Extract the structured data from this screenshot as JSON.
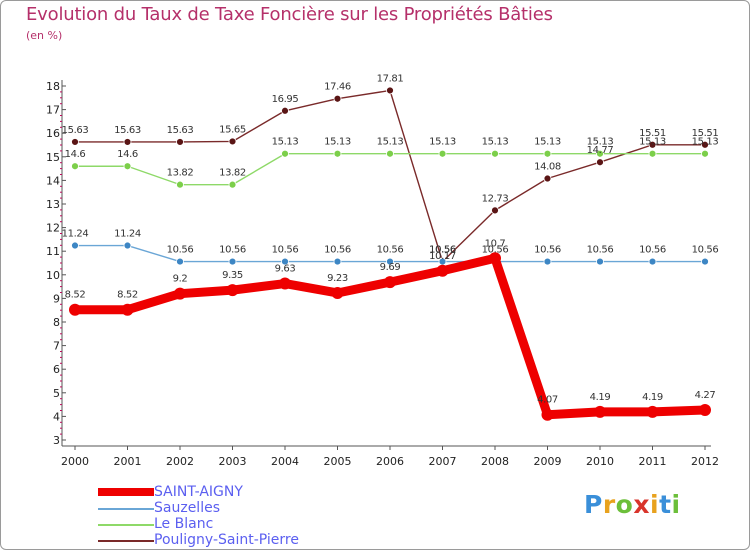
{
  "chart_data": {
    "type": "line",
    "title": "Evolution du Taux de Taxe Foncière sur les Propriétés Bâties",
    "subtitle": "(en %)",
    "xlabel": "",
    "ylabel": "(en %)",
    "ylim": [
      3,
      18
    ],
    "yticks": [
      "3",
      "4",
      "5",
      "6",
      "7",
      "8",
      "9",
      "10",
      "11",
      "12",
      "13",
      "14",
      "15",
      "16",
      "17",
      "18"
    ],
    "categories": [
      "2000",
      "2001",
      "2002",
      "2003",
      "2004",
      "2005",
      "2006",
      "2007",
      "2008",
      "2009",
      "2010",
      "2011",
      "2012"
    ],
    "grid": false,
    "legend_position": "bottom-left",
    "series": [
      {
        "name": "Pouligny-Saint-Pierre",
        "color": "#7a2a2a",
        "marker_color": "#5a1515",
        "values": [
          15.63,
          15.63,
          15.63,
          15.65,
          16.95,
          17.46,
          17.81,
          10.56,
          12.73,
          14.08,
          14.77,
          15.51,
          15.51
        ],
        "labels": [
          "15.63",
          "15.63",
          "15.63",
          "15.65",
          "16.95",
          "17.46",
          "17.81",
          "10.56",
          "12.73",
          "14.08",
          "14.77",
          "15.51",
          "15.51"
        ]
      },
      {
        "name": "Le Blanc",
        "color": "#8ed968",
        "marker_color": "#7ccf4a",
        "values": [
          14.6,
          14.6,
          13.82,
          13.82,
          15.13,
          15.13,
          15.13,
          15.13,
          15.13,
          15.13,
          15.13,
          15.13,
          15.13
        ],
        "labels": [
          "14.6",
          "14.6",
          "13.82",
          "13.82",
          "15.13",
          "15.13",
          "15.13",
          "15.13",
          "15.13",
          "15.13",
          "15.13",
          "15.13",
          "15.13"
        ]
      },
      {
        "name": "Sauzelles",
        "color": "#6aa6d6",
        "marker_color": "#3d86c4",
        "values": [
          11.24,
          11.24,
          10.56,
          10.56,
          10.56,
          10.56,
          10.56,
          10.56,
          10.56,
          10.56,
          10.56,
          10.56,
          10.56
        ],
        "labels": [
          "11.24",
          "11.24",
          "10.56",
          "10.56",
          "10.56",
          "10.56",
          "10.56",
          "10.56",
          "10.56",
          "10.56",
          "10.56",
          "10.56",
          "10.56"
        ]
      },
      {
        "name": "SAINT-AIGNY",
        "color": "#ee0000",
        "marker_color": "#ee0000",
        "values": [
          8.52,
          8.52,
          9.2,
          9.35,
          9.63,
          9.23,
          9.69,
          10.17,
          10.7,
          4.07,
          4.19,
          4.19,
          4.27
        ],
        "labels": [
          "8.52",
          "8.52",
          "9.2",
          "9.35",
          "9.63",
          "9.23",
          "9.69",
          "10.17",
          "10.7",
          "4.07",
          "4.19",
          "4.19",
          "4.27"
        ]
      }
    ]
  },
  "legend": {
    "items": [
      {
        "name": "SAINT-AIGNY",
        "color": "#ee0000"
      },
      {
        "name": "Sauzelles",
        "color": "#6aa6d6"
      },
      {
        "name": "Le Blanc",
        "color": "#8ed968"
      },
      {
        "name": "Pouligny-Saint-Pierre",
        "color": "#7a2a2a"
      }
    ]
  },
  "brand": {
    "letters": [
      "P",
      "r",
      "o",
      "x",
      "i",
      "t",
      "i"
    ],
    "colors": [
      "#3a8fd9",
      "#e8a21e",
      "#6cbf3a",
      "#d9342b",
      "#e8a21e",
      "#3a8fd9",
      "#6cbf3a"
    ]
  }
}
